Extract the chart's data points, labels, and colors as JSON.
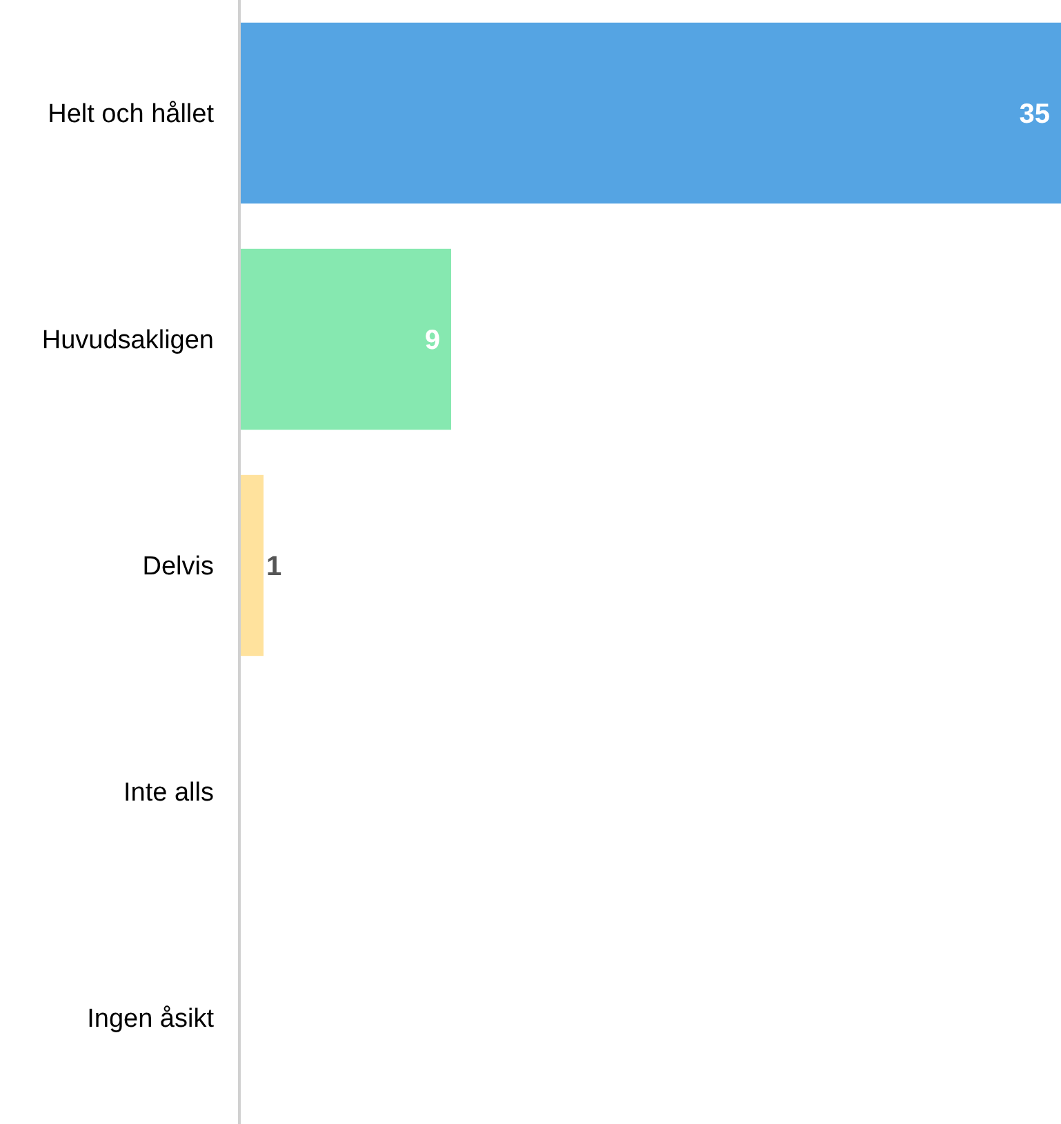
{
  "chart_data": {
    "type": "bar",
    "orientation": "horizontal",
    "categories": [
      "Helt och hållet",
      "Huvudsakligen",
      "Delvis",
      "Inte alls",
      "Ingen åsikt"
    ],
    "values": [
      35,
      9,
      1,
      0,
      0
    ],
    "colors": [
      "#55a4e3",
      "#86e8b0",
      "#ffe29d",
      "#c9c9c9",
      "#c9c9c9"
    ],
    "value_labels": [
      "35",
      "9",
      "1",
      null,
      null
    ],
    "xlim": [
      0,
      35
    ]
  }
}
